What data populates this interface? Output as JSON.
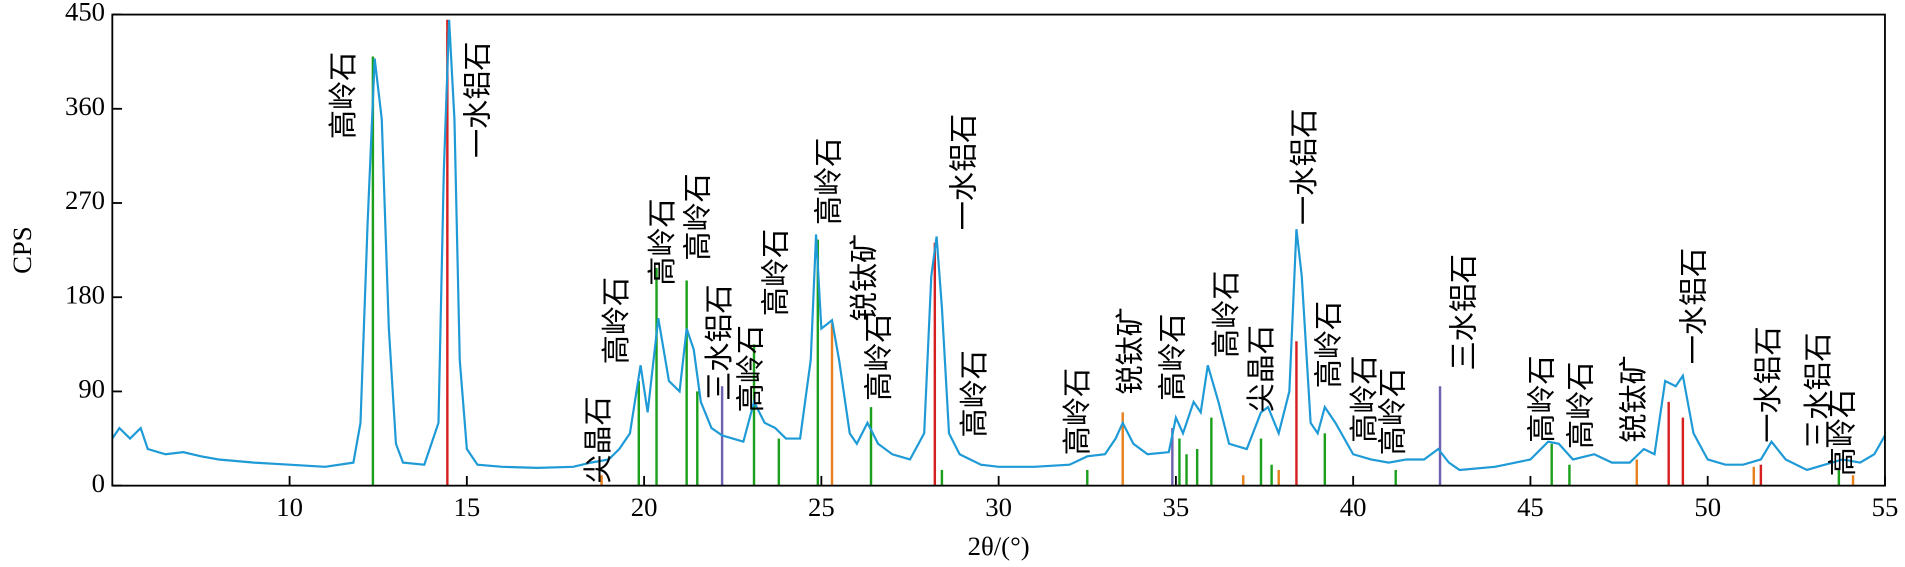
{
  "chart_data": {
    "type": "line",
    "xlabel": "2θ/(°)",
    "ylabel": "CPS",
    "xlim": [
      5,
      55
    ],
    "xticks": [
      10,
      15,
      20,
      25,
      30,
      35,
      40,
      45,
      50,
      55
    ],
    "ylim": [
      0,
      450
    ],
    "yticks": [
      0,
      90,
      180,
      270,
      360,
      450
    ],
    "color": "#1e9ad6",
    "x": [
      5,
      5.2,
      5.5,
      5.8,
      6,
      6.5,
      7,
      7.5,
      8,
      9,
      10,
      11,
      11.8,
      12.0,
      12.2,
      12.4,
      12.6,
      12.8,
      13.0,
      13.2,
      13.8,
      14.2,
      14.35,
      14.5,
      14.65,
      14.8,
      15.0,
      15.3,
      16,
      17,
      18,
      18.5,
      19,
      19.3,
      19.6,
      19.9,
      20.1,
      20.4,
      20.7,
      21.0,
      21.2,
      21.4,
      21.6,
      21.9,
      22.2,
      22.5,
      22.8,
      23.1,
      23.4,
      23.7,
      24.0,
      24.4,
      24.7,
      24.85,
      25.0,
      25.3,
      25.5,
      25.8,
      26.0,
      26.3,
      26.6,
      27.0,
      27.5,
      27.9,
      28.1,
      28.25,
      28.4,
      28.6,
      28.9,
      29.5,
      30,
      31,
      32,
      32.5,
      33,
      33.3,
      33.5,
      33.8,
      34.2,
      34.8,
      35.0,
      35.2,
      35.5,
      35.7,
      35.9,
      36.2,
      36.5,
      37.0,
      37.4,
      37.6,
      37.9,
      38.2,
      38.4,
      38.55,
      38.8,
      39.0,
      39.2,
      39.5,
      40,
      40.5,
      41,
      41.5,
      42,
      42.4,
      42.7,
      43,
      44,
      45,
      45.5,
      45.8,
      46.2,
      46.8,
      47.3,
      47.8,
      48.2,
      48.5,
      48.8,
      49.1,
      49.3,
      49.6,
      50.0,
      50.5,
      51,
      51.5,
      51.8,
      52.2,
      52.8,
      53.3,
      53.8,
      54.3,
      54.7,
      55
    ],
    "values": [
      45,
      55,
      45,
      55,
      35,
      30,
      32,
      28,
      25,
      22,
      20,
      18,
      22,
      60,
      250,
      408,
      350,
      150,
      40,
      22,
      20,
      60,
      300,
      445,
      350,
      120,
      35,
      20,
      18,
      17,
      18,
      22,
      25,
      35,
      50,
      115,
      70,
      160,
      100,
      90,
      150,
      130,
      80,
      55,
      48,
      45,
      42,
      80,
      60,
      55,
      45,
      45,
      120,
      240,
      150,
      158,
      120,
      50,
      40,
      60,
      40,
      30,
      25,
      50,
      200,
      238,
      170,
      50,
      30,
      20,
      18,
      18,
      20,
      28,
      30,
      45,
      60,
      40,
      30,
      32,
      65,
      50,
      80,
      70,
      115,
      80,
      40,
      35,
      70,
      75,
      50,
      90,
      245,
      200,
      60,
      50,
      75,
      60,
      30,
      25,
      22,
      25,
      25,
      35,
      22,
      15,
      18,
      25,
      42,
      40,
      25,
      30,
      22,
      22,
      35,
      30,
      100,
      95,
      105,
      50,
      25,
      20,
      20,
      25,
      42,
      25,
      15,
      20,
      25,
      22,
      30,
      48
    ],
    "sticks": [
      {
        "color": "#1ca01c",
        "x": [
          12.35,
          19.85,
          20.35,
          21.2,
          21.5,
          23.1,
          23.8,
          24.9,
          26.4,
          28.4,
          32.5,
          35.1,
          35.3,
          35.6,
          36.0,
          37.4,
          37.7,
          39.2,
          41.2,
          45.6,
          46.1,
          53.7
        ],
        "values": [
          410,
          100,
          208,
          196,
          90,
          135,
          45,
          235,
          75,
          15,
          15,
          45,
          30,
          35,
          65,
          45,
          20,
          50,
          15,
          40,
          20,
          15
        ]
      },
      {
        "color": "#d62020",
        "x": [
          14.45,
          28.2,
          38.4,
          48.9,
          49.3,
          51.5
        ],
        "values": [
          445,
          232,
          138,
          80,
          65,
          20
        ]
      },
      {
        "color": "#e8801e",
        "x": [
          18.8,
          25.3,
          33.5,
          36.9,
          37.9,
          48.0,
          51.3,
          54.1
        ],
        "values": [
          10,
          155,
          70,
          10,
          15,
          25,
          18,
          10
        ]
      },
      {
        "color": "#7060b0",
        "x": [
          22.2,
          34.9,
          42.45
        ],
        "values": [
          95,
          55,
          95
        ]
      }
    ],
    "annotations": [
      {
        "text": "高岭石",
        "x": 11.6,
        "y": 331
      },
      {
        "text": "一水铝石",
        "x": 15.4,
        "y": 313
      },
      {
        "text": "尖晶石",
        "x": 18.8,
        "y": 2
      },
      {
        "text": "高岭石",
        "x": 19.3,
        "y": 116
      },
      {
        "text": "高岭石",
        "x": 20.6,
        "y": 191
      },
      {
        "text": "高岭石",
        "x": 21.6,
        "y": 215
      },
      {
        "text": "三水铝石",
        "x": 22.2,
        "y": 81
      },
      {
        "text": "高岭石",
        "x": 23.1,
        "y": 70
      },
      {
        "text": "高岭石",
        "x": 23.8,
        "y": 162
      },
      {
        "text": "高岭石",
        "x": 25.3,
        "y": 249
      },
      {
        "text": "锐钛矿",
        "x": 26.3,
        "y": 157
      },
      {
        "text": "高岭石",
        "x": 26.7,
        "y": 81
      },
      {
        "text": "一水铝石",
        "x": 29.1,
        "y": 244
      },
      {
        "text": "高岭石",
        "x": 29.4,
        "y": 46
      },
      {
        "text": "高岭石",
        "x": 32.3,
        "y": 29
      },
      {
        "text": "锐钛矿",
        "x": 33.8,
        "y": 87
      },
      {
        "text": "高岭石",
        "x": 35.0,
        "y": 81
      },
      {
        "text": "高岭石",
        "x": 36.5,
        "y": 122
      },
      {
        "text": "尖晶石",
        "x": 37.5,
        "y": 70
      },
      {
        "text": "一水铝石",
        "x": 38.7,
        "y": 249
      },
      {
        "text": "高岭石",
        "x": 39.4,
        "y": 93
      },
      {
        "text": "高岭石",
        "x": 40.4,
        "y": 41
      },
      {
        "text": "高岭石",
        "x": 41.2,
        "y": 29
      },
      {
        "text": "三水铝石",
        "x": 43.2,
        "y": 110
      },
      {
        "text": "高岭石",
        "x": 45.4,
        "y": 41
      },
      {
        "text": "高岭石",
        "x": 46.5,
        "y": 35
      },
      {
        "text": "锐钛矿",
        "x": 48.0,
        "y": 41
      },
      {
        "text": "一水铝石",
        "x": 49.7,
        "y": 116
      },
      {
        "text": "一水铝石",
        "x": 51.8,
        "y": 41
      },
      {
        "text": "三水铝石",
        "x": 53.2,
        "y": 35
      },
      {
        "text": "高岭石",
        "x": 53.9,
        "y": 9
      }
    ]
  }
}
